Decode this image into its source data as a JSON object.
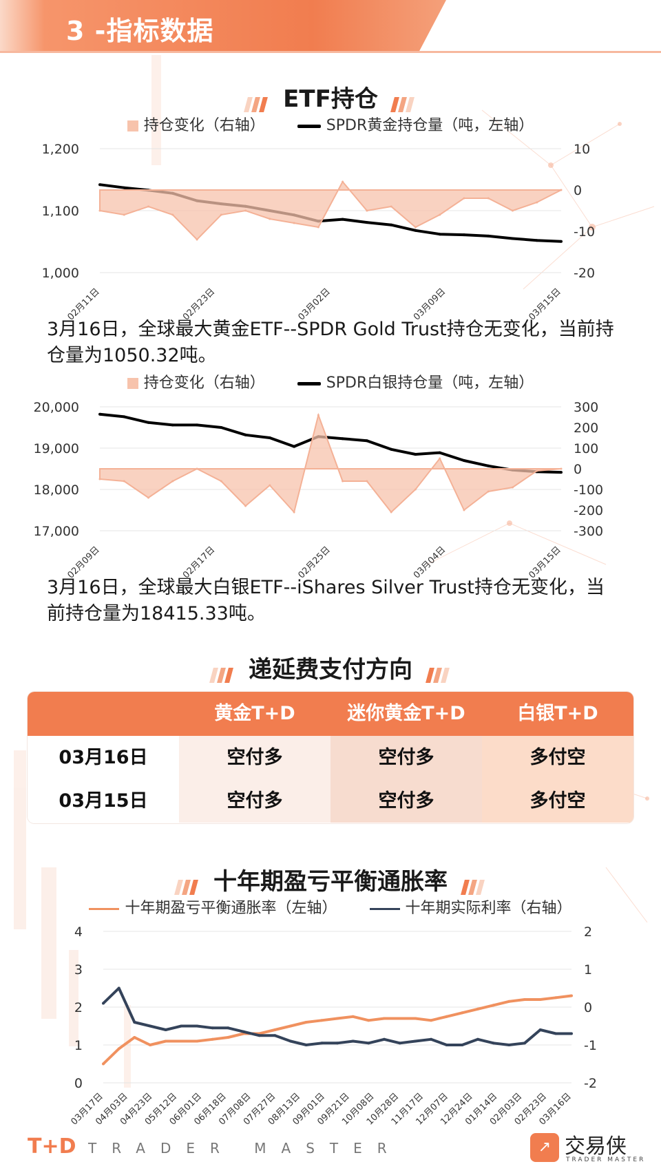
{
  "header": {
    "title": "3 -指标数据"
  },
  "section1": {
    "title": "ETF持仓",
    "legend": {
      "area": "持仓变化（右轴）",
      "line": "SPDR黄金持仓量（吨，左轴）"
    },
    "note": "3月16日，全球最大黄金ETF--SPDR Gold Trust持仓无变化，当前持仓量为1050.32吨。"
  },
  "section1b": {
    "legend": {
      "area": "持仓变化（右轴）",
      "line": "SPDR白银持仓量（吨，左轴）"
    },
    "note": "3月16日，全球最大白银ETF--iShares Silver Trust持仓无变化，当前持仓量为18415.33吨。"
  },
  "section2": {
    "title": "递延费支付方向",
    "table": {
      "headers": [
        "",
        "黄金T+D",
        "迷你黄金T+D",
        "白银T+D"
      ],
      "rows": [
        [
          "03月16日",
          "空付多",
          "空付多",
          "多付空"
        ],
        [
          "03月15日",
          "空付多",
          "空付多",
          "多付空"
        ]
      ]
    }
  },
  "section3": {
    "title": "十年期盈亏平衡通胀率",
    "legend": {
      "series1": "十年期盈亏平衡通胀率（左轴）",
      "series2": "十年期实际利率（右轴）"
    }
  },
  "footer": {
    "logo": "T+D",
    "tagline": "TRADER MASTER",
    "brand": "交易侠",
    "brand_sub": "TRADER MASTER"
  },
  "colors": {
    "accent": "#f17d4f",
    "area_fill": "#f7c3ac",
    "line_black": "#000000",
    "line_orange": "#f0915f",
    "line_navy": "#34435a"
  },
  "chart_data": [
    {
      "type": "line",
      "x_ticks": [
        "02月11日",
        "02月23日",
        "03月02日",
        "03月09日",
        "03月15日"
      ],
      "ylim_left": [
        1000,
        1200
      ],
      "yticks_left": [
        "1,000",
        "1,100",
        "1,200"
      ],
      "ylim_right": [
        -20,
        10
      ],
      "yticks_right": [
        "-20",
        "-10",
        "0",
        "10"
      ],
      "series": [
        {
          "name": "SPDR黄金持仓量（吨，左轴）",
          "axis": "left",
          "kind": "line",
          "values": [
            1142,
            1137,
            1133,
            1128,
            1116,
            1111,
            1107,
            1100,
            1093,
            1083,
            1086,
            1081,
            1077,
            1068,
            1062,
            1061,
            1059,
            1055,
            1052,
            1050.32
          ]
        },
        {
          "name": "持仓变化（右轴）",
          "axis": "right",
          "kind": "area",
          "values": [
            -5,
            -6,
            -4,
            -6,
            -12,
            -6,
            -5,
            -7,
            -8,
            -9,
            2,
            -5,
            -4,
            -9,
            -6,
            -2,
            -2,
            -5,
            -3,
            0
          ]
        }
      ]
    },
    {
      "type": "line",
      "x_ticks": [
        "02月09日",
        "02月17日",
        "02月25日",
        "03月04日",
        "03月15日"
      ],
      "ylim_left": [
        17000,
        20000
      ],
      "yticks_left": [
        "17,000",
        "18,000",
        "19,000",
        "20,000"
      ],
      "ylim_right": [
        -300,
        300
      ],
      "yticks_right": [
        "-300",
        "-200",
        "-100",
        "0",
        "100",
        "200",
        "300"
      ],
      "series": [
        {
          "name": "SPDR白银持仓量（吨，左轴）",
          "axis": "left",
          "kind": "line",
          "values": [
            19820,
            19760,
            19620,
            19560,
            19560,
            19500,
            19320,
            19250,
            19040,
            19280,
            19230,
            19180,
            18970,
            18850,
            18890,
            18700,
            18570,
            18470,
            18430,
            18415.33
          ]
        },
        {
          "name": "持仓变化（右轴）",
          "axis": "right",
          "kind": "area",
          "values": [
            -50,
            -60,
            -140,
            -60,
            0,
            -60,
            -180,
            -80,
            -210,
            260,
            -60,
            -60,
            -210,
            -100,
            50,
            -200,
            -110,
            -90,
            -10,
            0
          ]
        }
      ]
    },
    {
      "type": "line",
      "x_ticks": [
        "03月17日",
        "04月03日",
        "04月23日",
        "05月12日",
        "06月01日",
        "06月18日",
        "07月08日",
        "07月27日",
        "08月13日",
        "09月01日",
        "09月21日",
        "10月08日",
        "10月28日",
        "11月17日",
        "12月07日",
        "12月24日",
        "01月14日",
        "02月03日",
        "02月23日",
        "03月16日"
      ],
      "ylim_left": [
        0,
        4
      ],
      "yticks_left": [
        "0",
        "1",
        "2",
        "3",
        "4"
      ],
      "ylim_right": [
        -2,
        2
      ],
      "yticks_right": [
        "-2",
        "-1",
        "0",
        "1",
        "2"
      ],
      "series": [
        {
          "name": "十年期盈亏平衡通胀率（左轴）",
          "axis": "left",
          "kind": "line",
          "values": [
            0.5,
            0.9,
            1.2,
            1.0,
            1.1,
            1.1,
            1.1,
            1.15,
            1.2,
            1.3,
            1.3,
            1.4,
            1.5,
            1.6,
            1.65,
            1.7,
            1.75,
            1.65,
            1.7,
            1.7,
            1.7,
            1.65,
            1.75,
            1.85,
            1.95,
            2.05,
            2.15,
            2.2,
            2.2,
            2.25,
            2.3
          ]
        },
        {
          "name": "十年期实际利率（右轴）",
          "axis": "right",
          "kind": "line",
          "values": [
            0.1,
            0.5,
            -0.4,
            -0.5,
            -0.6,
            -0.5,
            -0.5,
            -0.55,
            -0.55,
            -0.65,
            -0.75,
            -0.75,
            -0.9,
            -1.0,
            -0.95,
            -0.95,
            -0.9,
            -0.95,
            -0.85,
            -0.95,
            -0.9,
            -0.85,
            -1.0,
            -1.0,
            -0.85,
            -0.95,
            -1.0,
            -0.95,
            -0.6,
            -0.7,
            -0.7
          ]
        }
      ]
    }
  ]
}
